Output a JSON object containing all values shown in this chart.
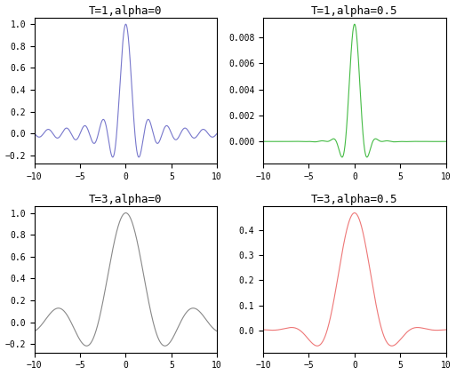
{
  "titles": [
    "T=1,alpha=0",
    "T=1,alpha=0.5",
    "T=3,alpha=0",
    "T=3,alpha=0.5"
  ],
  "colors": [
    "#7777cc",
    "#44bb44",
    "#888888",
    "#ee7777"
  ],
  "T_values": [
    1,
    1,
    3,
    3
  ],
  "alpha_values": [
    0,
    0.5,
    0,
    0.5
  ],
  "xlim": [
    -10,
    10
  ],
  "figsize": [
    5.13,
    4.22
  ],
  "dpi": 100,
  "font_family": "monospace"
}
